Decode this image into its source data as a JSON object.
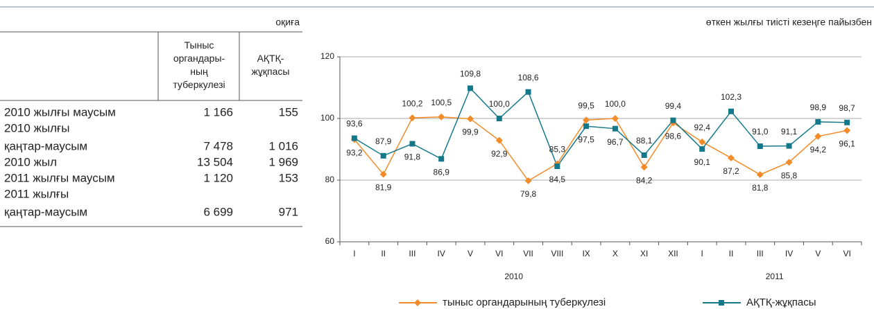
{
  "table": {
    "unit": "оқиға",
    "columns": [
      [
        "Тыныс",
        "органдары-",
        "ның",
        "туберкулезі"
      ],
      [
        "АҚТҚ-",
        "жұқпасы"
      ]
    ],
    "rows": [
      [
        [
          "2010 жылғы маусым"
        ],
        "1 166",
        "155"
      ],
      [
        [
          "2010 жылғы",
          "қаңтар-маусым"
        ],
        "7 478",
        "1 016"
      ],
      [
        [
          "2010 жыл"
        ],
        "13 504",
        "1 969"
      ],
      [
        [
          "2011 жылғы маусым"
        ],
        "1 120",
        "153"
      ],
      [
        [
          "2011 жылғы",
          "қаңтар-маусым"
        ],
        "6 699",
        "971"
      ]
    ]
  },
  "chart_data": {
    "type": "line",
    "subtitle": "өткен жылғы тиісті кезеңге пайызбен",
    "categories": [
      "I",
      "II",
      "III",
      "IV",
      "V",
      "VI",
      "VII",
      "VIII",
      "IX",
      "X",
      "XI",
      "XII",
      "I",
      "II",
      "III",
      "IV",
      "V",
      "VI"
    ],
    "groups": [
      {
        "label": "2010",
        "span": 12
      },
      {
        "label": "2011",
        "span": 6
      }
    ],
    "ylim": [
      60,
      120
    ],
    "yticks": [
      60,
      80,
      100,
      120
    ],
    "grid": true,
    "legend": "bottom",
    "series": [
      {
        "name": "тыныс органдарының туберкулезі",
        "color": "#f28c28",
        "marker": "diamond",
        "values": [
          93.2,
          81.9,
          100.2,
          100.5,
          99.9,
          92.9,
          79.8,
          85.3,
          99.5,
          100.0,
          84.2,
          98.6,
          92.4,
          87.2,
          81.8,
          85.8,
          94.2,
          96.1
        ],
        "value_labels": [
          "93,2",
          "81,9",
          "100,2",
          "100,5",
          "99,9",
          "92,9",
          "79,8",
          "85,3",
          "99,5",
          "100,0",
          "84,2",
          "98,6",
          "92,4",
          "87,2",
          "81,8",
          "85,8",
          "94,2",
          "96,1"
        ]
      },
      {
        "name": "АҚТҚ-жұқпасы",
        "color": "#13788a",
        "marker": "square",
        "values": [
          93.6,
          87.9,
          91.8,
          86.9,
          109.8,
          100.0,
          108.6,
          84.5,
          97.5,
          96.7,
          88.1,
          99.4,
          90.1,
          102.3,
          91.0,
          91.1,
          98.9,
          98.7
        ],
        "value_labels": [
          "93,6",
          "87,9",
          "91,8",
          "86,9",
          "109,8",
          "100,0",
          "108,6",
          "84,5",
          "97,5",
          "96,7",
          "88,1",
          "99,4",
          "90,1",
          "102,3",
          "91,0",
          "91,1",
          "98,9",
          "98,7"
        ]
      }
    ]
  }
}
